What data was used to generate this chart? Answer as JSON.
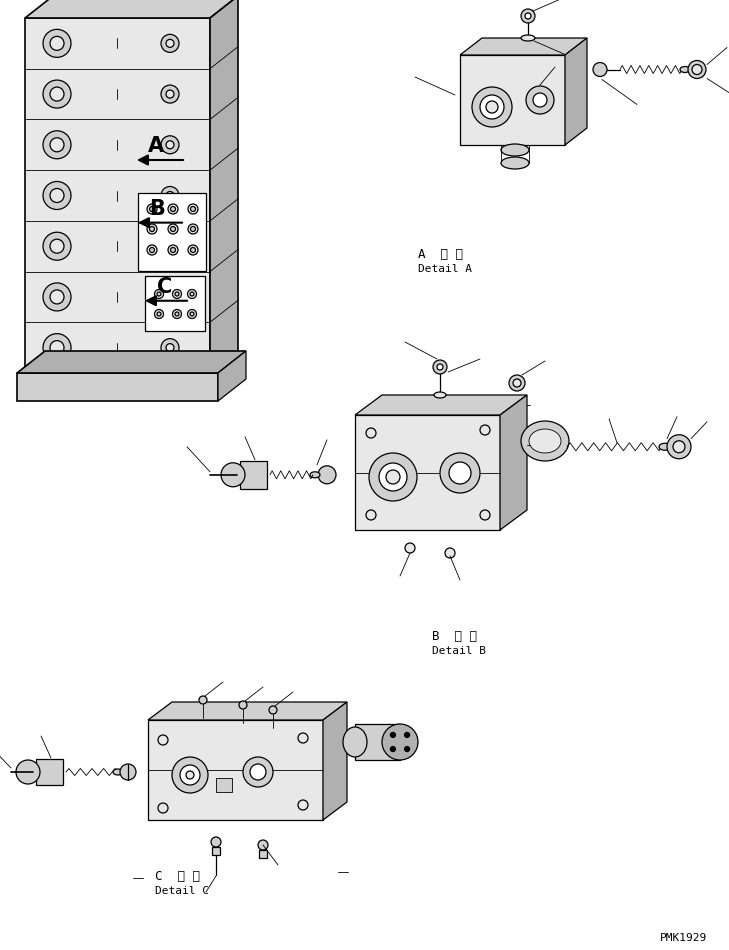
{
  "background_color": "#ffffff",
  "watermark": "PMK1929",
  "detail_A_label": "A 詳細\nDetail A",
  "detail_B_label": "B 詳細\nDetail B",
  "detail_C_label": "C 詳細\nDetail C",
  "lw_main": 0.9,
  "lw_thin": 0.6,
  "lw_thick": 1.2,
  "gray_light": "#e8e8e8",
  "gray_mid": "#d0d0d0",
  "gray_dark": "#b0b0b0"
}
